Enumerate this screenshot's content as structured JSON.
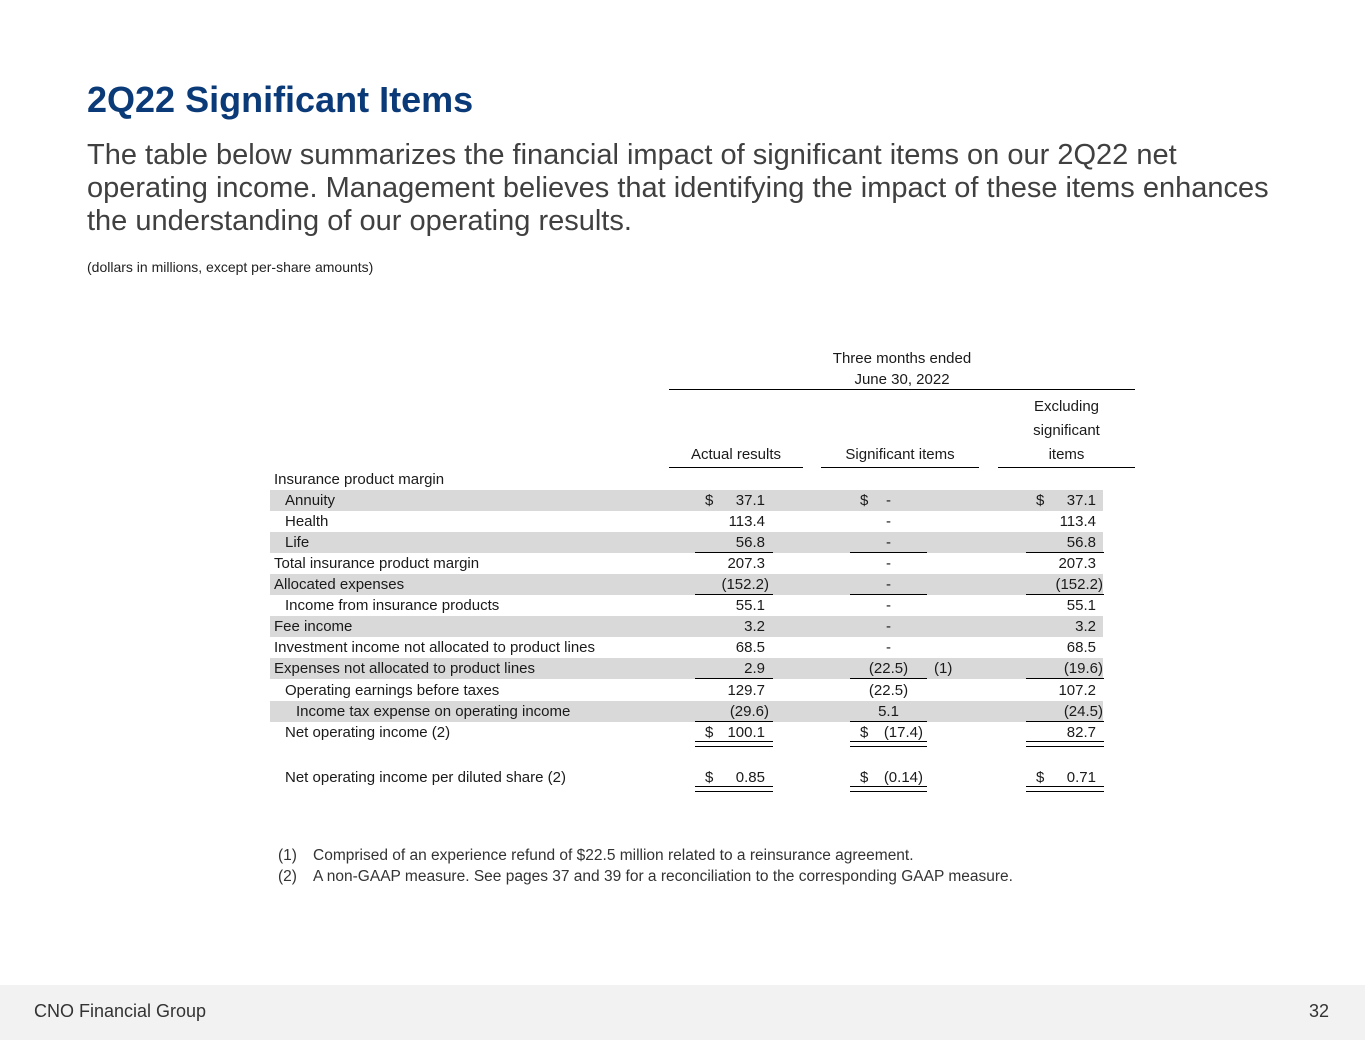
{
  "title": "2Q22 Significant Items",
  "subtitle": "The table below summarizes the financial impact of significant items on our 2Q22 net operating income. Management believes that identifying the impact of these items enhances the understanding of our operating results.",
  "units_note": "(dollars in millions, except per-share amounts)",
  "table": {
    "period_line1": "Three months ended",
    "period_line2": "June 30, 2022",
    "col_actual": "Actual results",
    "col_significant": "Significant items",
    "col_excluding_line1": "Excluding",
    "col_excluding_line2": "significant",
    "col_excluding_line3": "items",
    "section_label": "Insurance product margin",
    "currency": "$",
    "rows": {
      "annuity": {
        "label": "Annuity",
        "actual": "37.1",
        "significant": "-",
        "excluding": "37.1"
      },
      "health": {
        "label": "Health",
        "actual": "113.4",
        "significant": "-",
        "excluding": "113.4"
      },
      "life": {
        "label": "Life",
        "actual": "56.8",
        "significant": "-",
        "excluding": "56.8"
      },
      "total_ipm": {
        "label": "Total insurance product margin",
        "actual": "207.3",
        "significant": "-",
        "excluding": "207.3"
      },
      "allocated": {
        "label": "Allocated expenses",
        "actual": "(152.2)",
        "significant": "-",
        "excluding": "(152.2)"
      },
      "income_ins": {
        "label": "Income from insurance products",
        "actual": "55.1",
        "significant": "-",
        "excluding": "55.1"
      },
      "fee": {
        "label": "Fee income",
        "actual": "3.2",
        "significant": "-",
        "excluding": "3.2"
      },
      "investment": {
        "label": "Investment income not allocated to product lines",
        "actual": "68.5",
        "significant": "-",
        "excluding": "68.5"
      },
      "expenses_na": {
        "label": "Expenses not allocated to product lines",
        "actual": "2.9",
        "significant": "(22.5)",
        "significant_note": "(1)",
        "excluding": "(19.6)"
      },
      "op_earnings": {
        "label": "Operating earnings before taxes",
        "actual": "129.7",
        "significant": "(22.5)",
        "excluding": "107.2"
      },
      "tax": {
        "label": "Income tax expense on operating income",
        "actual": "(29.6)",
        "significant": "5.1",
        "excluding": "(24.5)"
      },
      "noi": {
        "label": "Net operating income (2)",
        "actual": "100.1",
        "significant": "(17.4)",
        "excluding": "82.7"
      },
      "noi_share": {
        "label": "Net operating income per diluted share (2)",
        "actual": "0.85",
        "significant": "(0.14)",
        "excluding": "0.71"
      }
    }
  },
  "footnotes": [
    {
      "num": "(1)",
      "text": "Comprised of an experience refund of $22.5 million related to a reinsurance agreement."
    },
    {
      "num": "(2)",
      "text": "A non-GAAP measure. See pages 37 and 39 for a reconciliation to the corresponding GAAP measure."
    }
  ],
  "footer": {
    "company": "CNO Financial Group",
    "page": "32"
  }
}
